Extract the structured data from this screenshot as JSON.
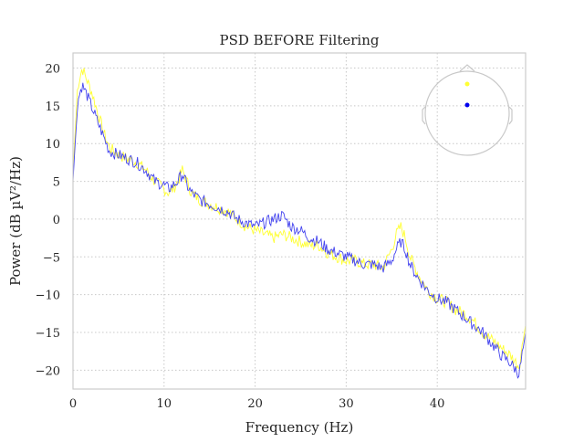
{
  "chart_data": {
    "type": "line",
    "title": "PSD BEFORE Filtering",
    "xlabel": "Frequency (Hz)",
    "ylabel": "Power (dB µV²/Hz)",
    "xlim": [
      0,
      49.7
    ],
    "ylim": [
      -22.5,
      22
    ],
    "xticks": [
      0,
      10,
      20,
      30,
      40
    ],
    "yticks": [
      20,
      15,
      10,
      5,
      0,
      -5,
      -10,
      -15,
      -20
    ],
    "xtick_labels": [
      "0",
      "10",
      "20",
      "30",
      "40"
    ],
    "ytick_labels": [
      "20",
      "15",
      "10",
      "5",
      "0",
      "−5",
      "−10",
      "−15",
      "−20"
    ],
    "grid": true,
    "legend": "head-map inset top-right",
    "series": [
      {
        "color": "#ffff33",
        "x": [
          0,
          0.5,
          1,
          1.5,
          2,
          2.5,
          3,
          3.5,
          4,
          5,
          6,
          7,
          8,
          9,
          10,
          10.5,
          11,
          11.5,
          12,
          12.5,
          13,
          14,
          15,
          16,
          17,
          18,
          19,
          20,
          21,
          22,
          23,
          24,
          25,
          26,
          27,
          28,
          29,
          30,
          31,
          32,
          33,
          34,
          35,
          35.5,
          36,
          36.5,
          37,
          38,
          39,
          40,
          41,
          42,
          43,
          44,
          45,
          46,
          47,
          48,
          49,
          49.7
        ],
        "y": [
          6,
          17.5,
          20,
          18.5,
          17,
          15,
          13,
          11,
          9.5,
          8.5,
          8,
          7.5,
          6.5,
          5,
          4,
          3.5,
          4,
          5,
          6.5,
          5,
          3.5,
          2.5,
          2,
          1.5,
          1,
          0,
          -1,
          -1.5,
          -2,
          -2.5,
          -2,
          -2.5,
          -3,
          -3.5,
          -3.5,
          -4.5,
          -5,
          -5.5,
          -5.5,
          -6,
          -6,
          -6.5,
          -4,
          -2,
          -1,
          -2.5,
          -5,
          -7.5,
          -9.5,
          -10.5,
          -11,
          -12,
          -12.5,
          -13.5,
          -15,
          -16,
          -17,
          -18,
          -19.5,
          -14
        ]
      },
      {
        "color": "#4444ee",
        "x": [
          0,
          0.5,
          1,
          1.5,
          2,
          2.5,
          3,
          3.5,
          4,
          5,
          6,
          7,
          8,
          9,
          10,
          10.5,
          11,
          11.5,
          12,
          12.5,
          13,
          14,
          15,
          16,
          17,
          18,
          19,
          20,
          21,
          22,
          23,
          24,
          25,
          26,
          27,
          28,
          29,
          30,
          31,
          32,
          33,
          34,
          35,
          35.5,
          36,
          36.5,
          37,
          38,
          39,
          40,
          41,
          42,
          43,
          44,
          45,
          46,
          47,
          48,
          49,
          49.7
        ],
        "y": [
          5,
          15.5,
          17.8,
          16.5,
          15,
          13.5,
          12,
          10.5,
          9,
          8.5,
          8,
          7.5,
          6.5,
          5,
          4.5,
          4,
          4.5,
          5,
          6,
          4.5,
          3.5,
          2.5,
          2,
          1.5,
          1,
          0,
          -0.5,
          -1,
          -0.5,
          0,
          0.5,
          -1,
          -1.5,
          -2.5,
          -3,
          -4,
          -4.5,
          -5,
          -5.5,
          -6,
          -6,
          -6.5,
          -5.5,
          -4,
          -3,
          -4,
          -6,
          -8,
          -9.5,
          -10.5,
          -11,
          -12,
          -13,
          -14,
          -15,
          -16.5,
          -18,
          -19,
          -20.5,
          -15
        ]
      }
    ]
  },
  "inset": {
    "sensor_colors": [
      "#ffff33",
      "#0000ee"
    ]
  }
}
